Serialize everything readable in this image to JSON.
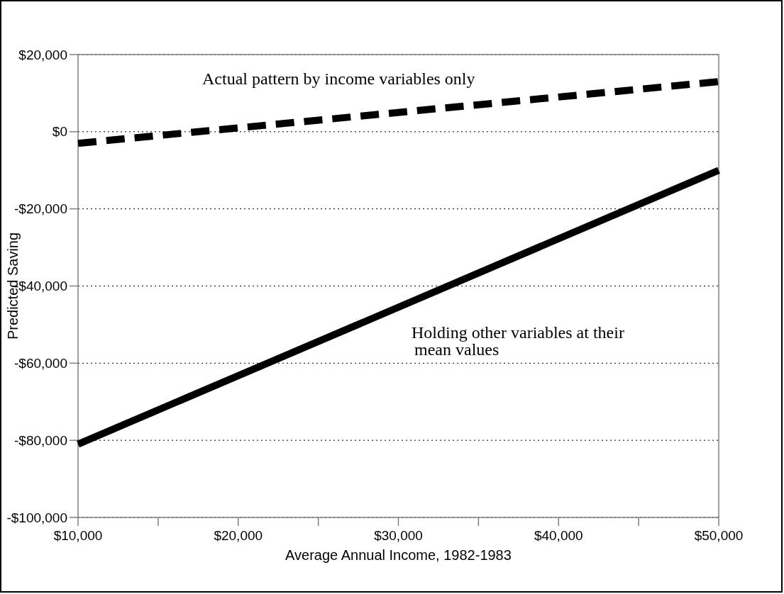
{
  "chart_data": {
    "type": "line",
    "xlabel": "Average Annual Income, 1982-1983",
    "ylabel": "Predicted Saving",
    "xlim": [
      10000,
      50000
    ],
    "xticks": [
      {
        "value": 10000,
        "label": "$10,000"
      },
      {
        "value": 15000,
        "label": null
      },
      {
        "value": 20000,
        "label": "$20,000"
      },
      {
        "value": 25000,
        "label": null
      },
      {
        "value": 30000,
        "label": "$30,000"
      },
      {
        "value": 35000,
        "label": null
      },
      {
        "value": 40000,
        "label": "$40,000"
      },
      {
        "value": 45000,
        "label": null
      },
      {
        "value": 50000,
        "label": "$50,000"
      }
    ],
    "ylim": [
      -100000,
      20000
    ],
    "yticks": [
      {
        "value": -100000,
        "label": "-$100,000"
      },
      {
        "value": -80000,
        "label": "-$80,000"
      },
      {
        "value": -60000,
        "label": "-$60,000"
      },
      {
        "value": -40000,
        "label": "-$40,000"
      },
      {
        "value": -20000,
        "label": "-$20,000"
      },
      {
        "value": 0,
        "label": "$0"
      },
      {
        "value": 20000,
        "label": "$20,000"
      }
    ],
    "grid": "y",
    "marker": "none",
    "x": [
      10000,
      50000
    ],
    "series": [
      {
        "color": "#000000",
        "line_style": "dashed",
        "values": [
          -3000,
          13000
        ]
      },
      {
        "color": "#000000",
        "line_style": "solid",
        "values": [
          -81000,
          -10000
        ]
      }
    ],
    "annotations": [
      "Actual pattern by income variables only",
      "Holding other variables at their\nmean values"
    ]
  }
}
